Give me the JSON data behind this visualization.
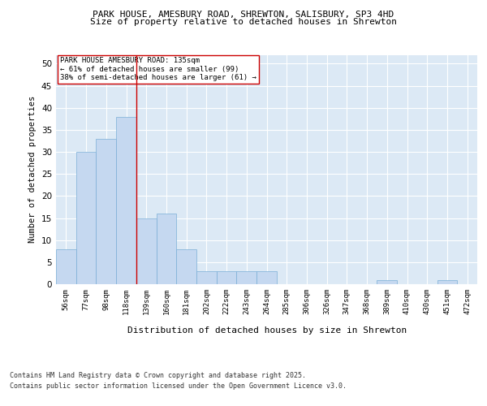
{
  "title1": "PARK HOUSE, AMESBURY ROAD, SHREWTON, SALISBURY, SP3 4HD",
  "title2": "Size of property relative to detached houses in Shrewton",
  "xlabel": "Distribution of detached houses by size in Shrewton",
  "ylabel": "Number of detached properties",
  "categories": [
    "56sqm",
    "77sqm",
    "98sqm",
    "118sqm",
    "139sqm",
    "160sqm",
    "181sqm",
    "202sqm",
    "222sqm",
    "243sqm",
    "264sqm",
    "285sqm",
    "306sqm",
    "326sqm",
    "347sqm",
    "368sqm",
    "389sqm",
    "410sqm",
    "430sqm",
    "451sqm",
    "472sqm"
  ],
  "values": [
    8,
    30,
    33,
    38,
    15,
    16,
    8,
    3,
    3,
    3,
    3,
    0,
    0,
    0,
    0,
    0,
    1,
    0,
    0,
    1,
    0
  ],
  "bar_color": "#c5d8f0",
  "bar_edge_color": "#7aaed6",
  "background_color": "#dce9f5",
  "grid_color": "#ffffff",
  "vline_x": 3.5,
  "vline_color": "#cc0000",
  "annotation_title": "PARK HOUSE AMESBURY ROAD: 135sqm",
  "annotation_line1": "← 61% of detached houses are smaller (99)",
  "annotation_line2": "38% of semi-detached houses are larger (61) →",
  "annotation_box_color": "#ffffff",
  "annotation_box_edge": "#cc0000",
  "ylim": [
    0,
    52
  ],
  "yticks": [
    0,
    5,
    10,
    15,
    20,
    25,
    30,
    35,
    40,
    45,
    50
  ],
  "footnote1": "Contains HM Land Registry data © Crown copyright and database right 2025.",
  "footnote2": "Contains public sector information licensed under the Open Government Licence v3.0."
}
